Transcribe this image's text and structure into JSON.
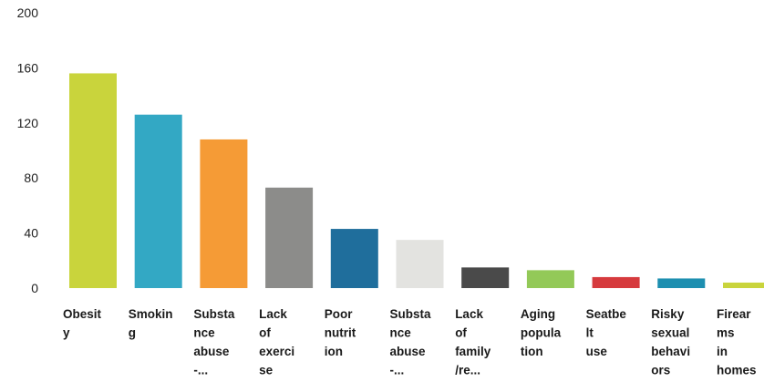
{
  "chart_data": {
    "type": "bar",
    "title": "",
    "xlabel": "",
    "ylabel": "",
    "ylim": [
      0,
      200
    ],
    "yticks": [
      0,
      40,
      80,
      120,
      160,
      200
    ],
    "grid": false,
    "legend": "none",
    "categories": [
      "Obesity",
      "Smoking",
      "Substance abuse -...",
      "Lack of exercise",
      "Poor nutrition",
      "Substance abuse -...",
      "Lack of family /re...",
      "Aging population",
      "Seatbelt use",
      "Risky sexual behaviors",
      "Firearms in homes"
    ],
    "category_label_lines": [
      [
        "Obesit",
        "y"
      ],
      [
        "Smokin",
        "g"
      ],
      [
        "Substa",
        "nce",
        "abuse",
        "-..."
      ],
      [
        "Lack",
        "of",
        "exerci",
        "se"
      ],
      [
        "Poor",
        "nutrit",
        "ion"
      ],
      [
        "Substa",
        "nce",
        "abuse",
        "-..."
      ],
      [
        "Lack",
        "of",
        "family",
        "/re..."
      ],
      [
        "Aging",
        "popula",
        "tion"
      ],
      [
        "Seatbe",
        "lt",
        "use"
      ],
      [
        "Risky",
        "sexual",
        "behavi",
        "ors"
      ],
      [
        "Firear",
        "ms",
        "in",
        "homes"
      ]
    ],
    "values": [
      156,
      126,
      108,
      73,
      43,
      35,
      15,
      13,
      8,
      7,
      4
    ],
    "colors": [
      "#c9d43c",
      "#33a8c4",
      "#f59b36",
      "#8c8c8a",
      "#1f6e9c",
      "#e3e3e0",
      "#4a4a4a",
      "#93c958",
      "#d63a3d",
      "#1d8fb0",
      "#c9d43c"
    ]
  }
}
